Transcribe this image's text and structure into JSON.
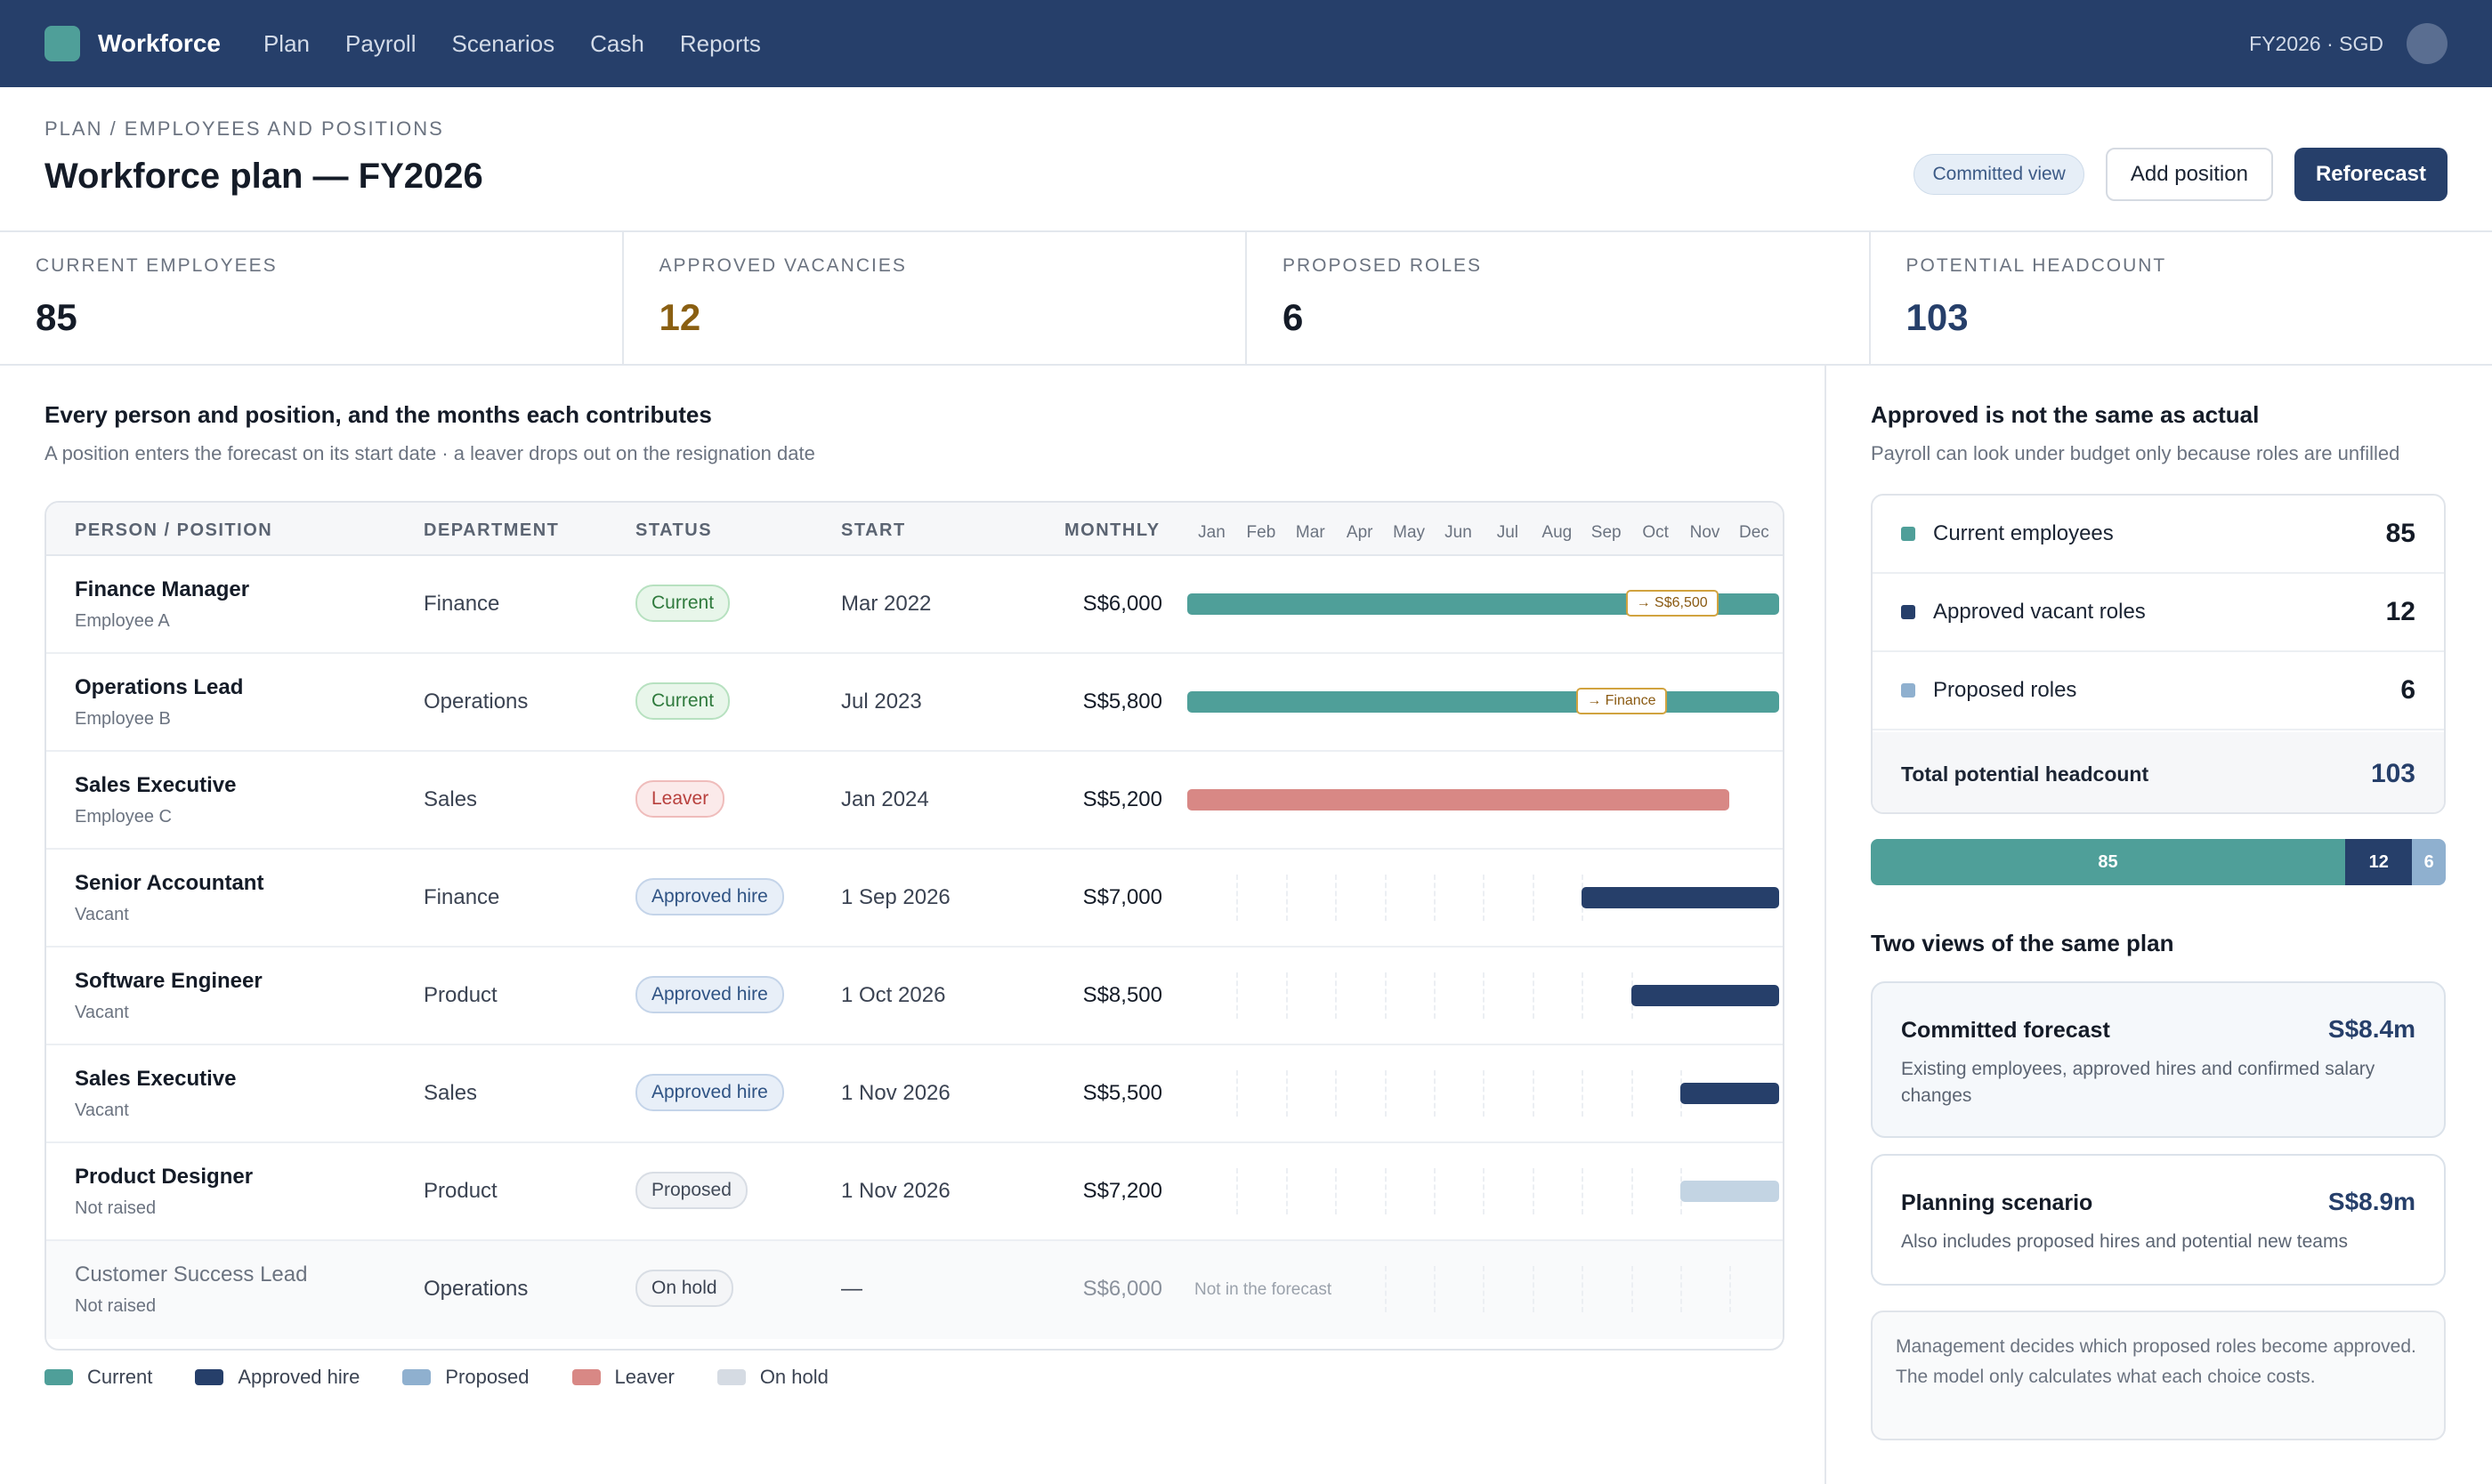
{
  "app": {
    "brand": "Workforce",
    "nav": [
      "Plan",
      "Payroll",
      "Scenarios",
      "Cash",
      "Reports"
    ],
    "fiscal_label": "FY2026 · SGD"
  },
  "header": {
    "breadcrumb": "PLAN / EMPLOYEES AND POSITIONS",
    "title": "Workforce plan — FY2026",
    "view_badge": "Committed view",
    "add_label": "Add position",
    "reforecast_label": "Reforecast"
  },
  "kpis": [
    {
      "label": "CURRENT EMPLOYEES",
      "value": "85",
      "color": "#141b27"
    },
    {
      "label": "APPROVED VACANCIES",
      "value": "12",
      "color": "#8a5f12"
    },
    {
      "label": "PROPOSED ROLES",
      "value": "6",
      "color": "#141b27"
    },
    {
      "label": "POTENTIAL HEADCOUNT",
      "value": "103",
      "color": "#263f6a"
    }
  ],
  "table_section": {
    "title": "Every person and position, and the months each contributes",
    "subtitle": "A position enters the forecast on its start date · a leaver drops out on the resignation date"
  },
  "table": {
    "columns": [
      "PERSON / POSITION",
      "DEPARTMENT",
      "STATUS",
      "START",
      "MONTHLY"
    ],
    "months": [
      "Jan",
      "Feb",
      "Mar",
      "Apr",
      "May",
      "Jun",
      "Jul",
      "Aug",
      "Sep",
      "Oct",
      "Nov",
      "Dec"
    ],
    "not_in_forecast": "Not in the forecast",
    "rows": [
      {
        "name": "Finance Manager",
        "sub": "Employee A",
        "department": "Finance",
        "status": "Current",
        "status_key": "current",
        "start": "Mar 2022",
        "monthly": "S$6,000",
        "bar_type": "current",
        "bar_from_month": 1,
        "bar_to_month": 12,
        "flag": "→ S$6,500",
        "flag_month": 10
      },
      {
        "name": "Operations Lead",
        "sub": "Employee B",
        "department": "Operations",
        "status": "Current",
        "status_key": "current",
        "start": "Jul 2023",
        "monthly": "S$5,800",
        "bar_type": "current",
        "bar_from_month": 1,
        "bar_to_month": 12,
        "flag": "→ Finance",
        "flag_month": 9
      },
      {
        "name": "Sales Executive",
        "sub": "Employee C",
        "department": "Sales",
        "status": "Leaver",
        "status_key": "leaver",
        "start": "Jan 2024",
        "monthly": "S$5,200",
        "bar_type": "leaver",
        "bar_from_month": 1,
        "bar_to_month": 11
      },
      {
        "name": "Senior Accountant",
        "sub": "Vacant",
        "department": "Finance",
        "status": "Approved hire",
        "status_key": "approved",
        "start": "1 Sep 2026",
        "monthly": "S$7,000",
        "bar_type": "approved",
        "bar_from_month": 9,
        "bar_to_month": 12
      },
      {
        "name": "Software Engineer",
        "sub": "Vacant",
        "department": "Product",
        "status": "Approved hire",
        "status_key": "approved",
        "start": "1 Oct 2026",
        "monthly": "S$8,500",
        "bar_type": "approved",
        "bar_from_month": 10,
        "bar_to_month": 12
      },
      {
        "name": "Sales Executive",
        "sub": "Vacant",
        "department": "Sales",
        "status": "Approved hire",
        "status_key": "approved",
        "start": "1 Nov 2026",
        "monthly": "S$5,500",
        "bar_type": "approved",
        "bar_from_month": 11,
        "bar_to_month": 12
      },
      {
        "name": "Product Designer",
        "sub": "Not raised",
        "department": "Product",
        "status": "Proposed",
        "status_key": "proposed",
        "start": "1 Nov 2026",
        "monthly": "S$7,200",
        "bar_type": "proposed",
        "bar_from_month": 11,
        "bar_to_month": 12
      },
      {
        "name": "Customer Success Lead",
        "sub": "Not raised",
        "department": "Operations",
        "status": "On hold",
        "status_key": "onhold",
        "start": "—",
        "monthly": "S$6,000",
        "bar_type": "none",
        "muted": true
      }
    ]
  },
  "legend": [
    {
      "label": "Current",
      "color": "#4f9f99"
    },
    {
      "label": "Approved hire",
      "color": "#263f6a"
    },
    {
      "label": "Proposed",
      "color": "#8fb0cf"
    },
    {
      "label": "Leaver",
      "color": "#d88885"
    },
    {
      "label": "On hold",
      "color": "#d5dbe3"
    }
  ],
  "side": {
    "title": "Approved is not the same as actual",
    "subtitle": "Payroll can look under budget only because roles are unfilled",
    "breakdown": [
      {
        "label": "Current employees",
        "value": "85",
        "color": "#4f9f99"
      },
      {
        "label": "Approved vacant roles",
        "value": "12",
        "color": "#263f6a"
      },
      {
        "label": "Proposed roles",
        "value": "6",
        "color": "#8fb0cf"
      }
    ],
    "total_label": "Total potential headcount",
    "total_value": "103",
    "stack": [
      {
        "label": "85",
        "value": 85,
        "color": "#4f9f99"
      },
      {
        "label": "12",
        "value": 12,
        "color": "#263f6a"
      },
      {
        "label": "6",
        "value": 6,
        "color": "#8fb0cf"
      }
    ],
    "views_title": "Two views of the same plan",
    "views": [
      {
        "name": "Committed forecast",
        "amount": "S$8.4m",
        "desc": "Existing employees, approved hires and confirmed salary changes"
      },
      {
        "name": "Planning scenario",
        "amount": "S$8.9m",
        "desc": "Also includes proposed hires and potential new teams"
      }
    ],
    "note": "Management decides which proposed roles become approved. The model only calculates what each choice costs."
  }
}
